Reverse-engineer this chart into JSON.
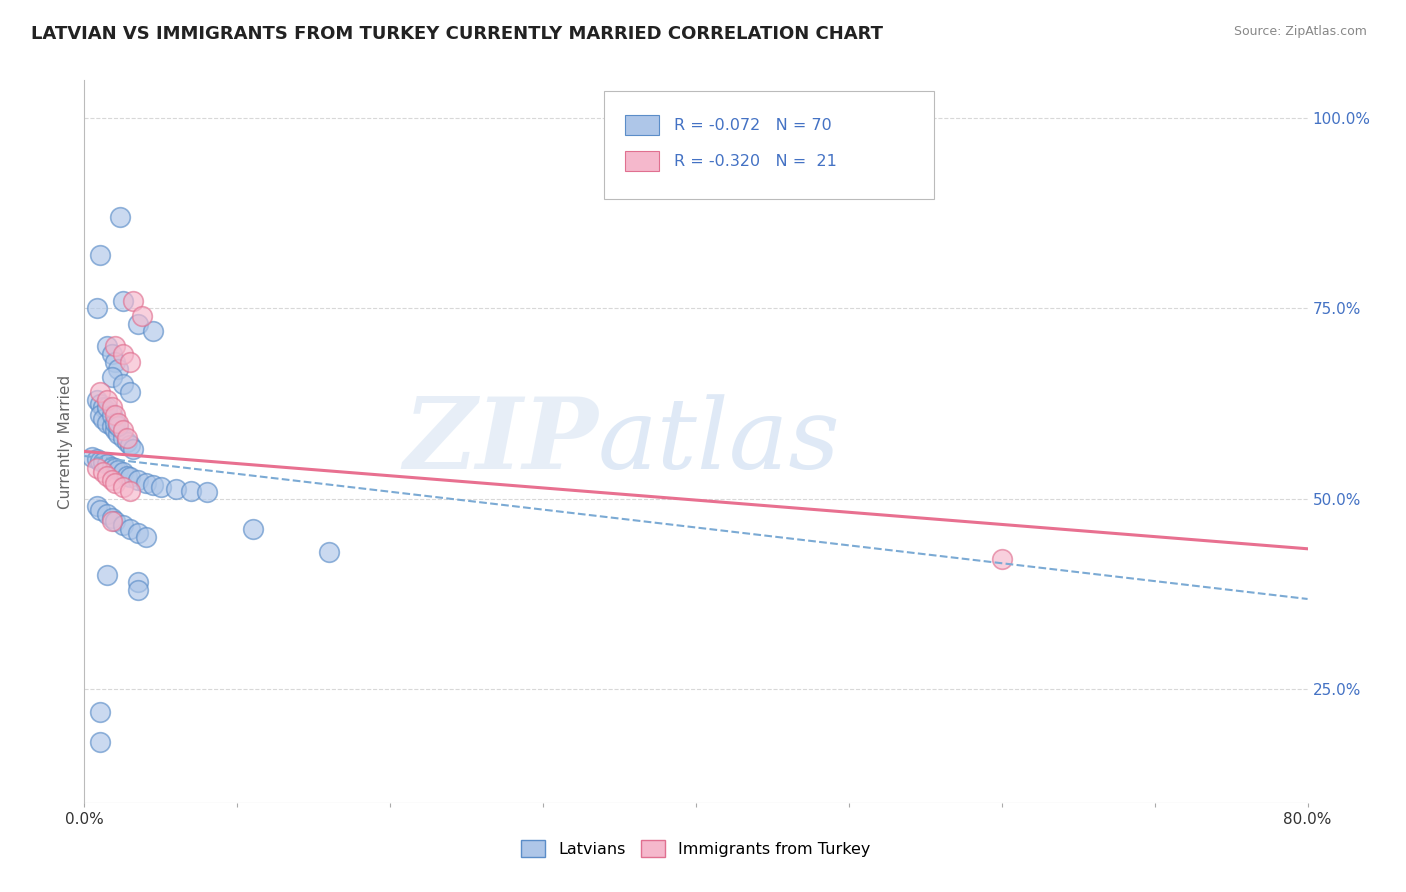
{
  "title": "LATVIAN VS IMMIGRANTS FROM TURKEY CURRENTLY MARRIED CORRELATION CHART",
  "source": "Source: ZipAtlas.com",
  "ylabel": "Currently Married",
  "xlim": [
    0.0,
    0.8
  ],
  "ylim": [
    0.1,
    1.05
  ],
  "yticks_right": [
    0.25,
    0.5,
    0.75,
    1.0
  ],
  "yticklabels_right": [
    "25.0%",
    "50.0%",
    "75.0%",
    "100.0%"
  ],
  "color_latvian_fill": "#aec6e8",
  "color_latvian_edge": "#5b8dc8",
  "color_turkey_fill": "#f5b8cc",
  "color_turkey_edge": "#e07090",
  "color_trend_latvian": "#7baad4",
  "color_trend_turkey": "#e87090",
  "color_text_blue": "#4472c4",
  "background_color": "#ffffff",
  "grid_color": "#d8d8d8",
  "title_fontsize": 13,
  "label_fontsize": 11,
  "tick_fontsize": 11
}
